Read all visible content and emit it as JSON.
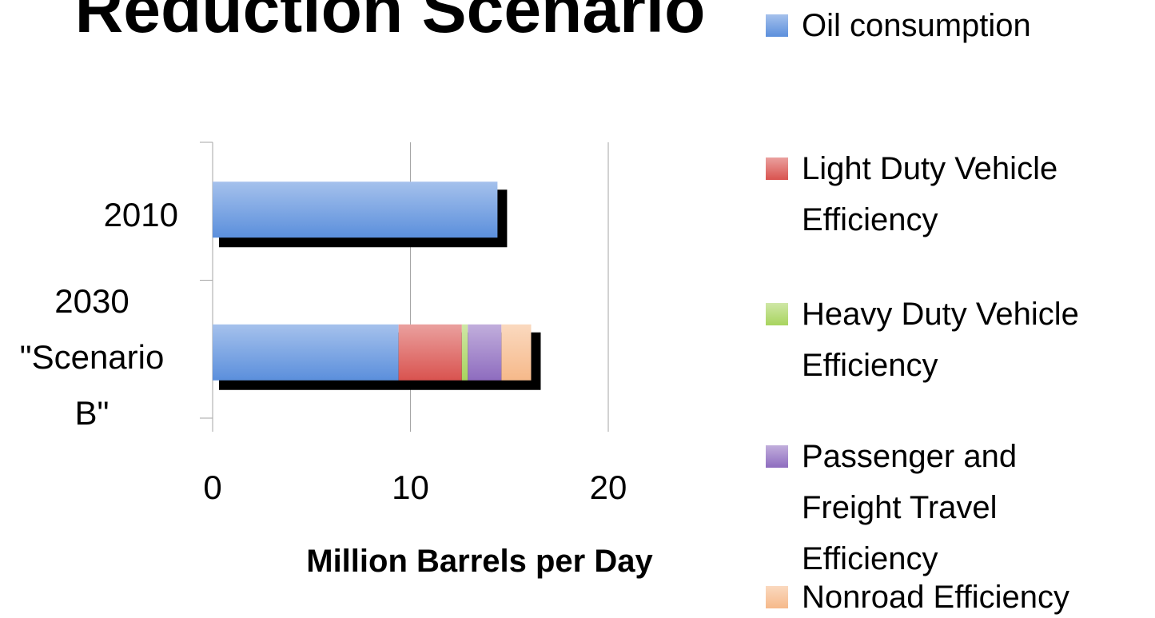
{
  "chart_data": {
    "type": "stacked_bar_horizontal",
    "title": "Reduction Scenario",
    "x_label": "Million Barrels per Day",
    "categories": [
      "2010",
      "2030 \"Scenario B\""
    ],
    "series": [
      {
        "name": "Oil consumption",
        "color": "#5b8fdc",
        "values": [
          14.4,
          9.4
        ]
      },
      {
        "name": "Light Duty Vehicle Efficiency",
        "color": "#d9534f",
        "values": [
          0,
          3.2
        ]
      },
      {
        "name": "Heavy Duty Vehicle Efficiency",
        "color": "#a8d45e",
        "values": [
          0,
          0.3
        ]
      },
      {
        "name": "Passenger and Freight Travel Efficiency",
        "color": "#8e6cbf",
        "values": [
          0,
          1.7
        ]
      },
      {
        "name": "Nonroad Efficiency",
        "color": "#f6b98a",
        "values": [
          0,
          1.5
        ]
      }
    ],
    "xlim": [
      0,
      20
    ],
    "xticks": [
      0,
      10,
      20
    ],
    "grid": true,
    "legend": "right"
  }
}
